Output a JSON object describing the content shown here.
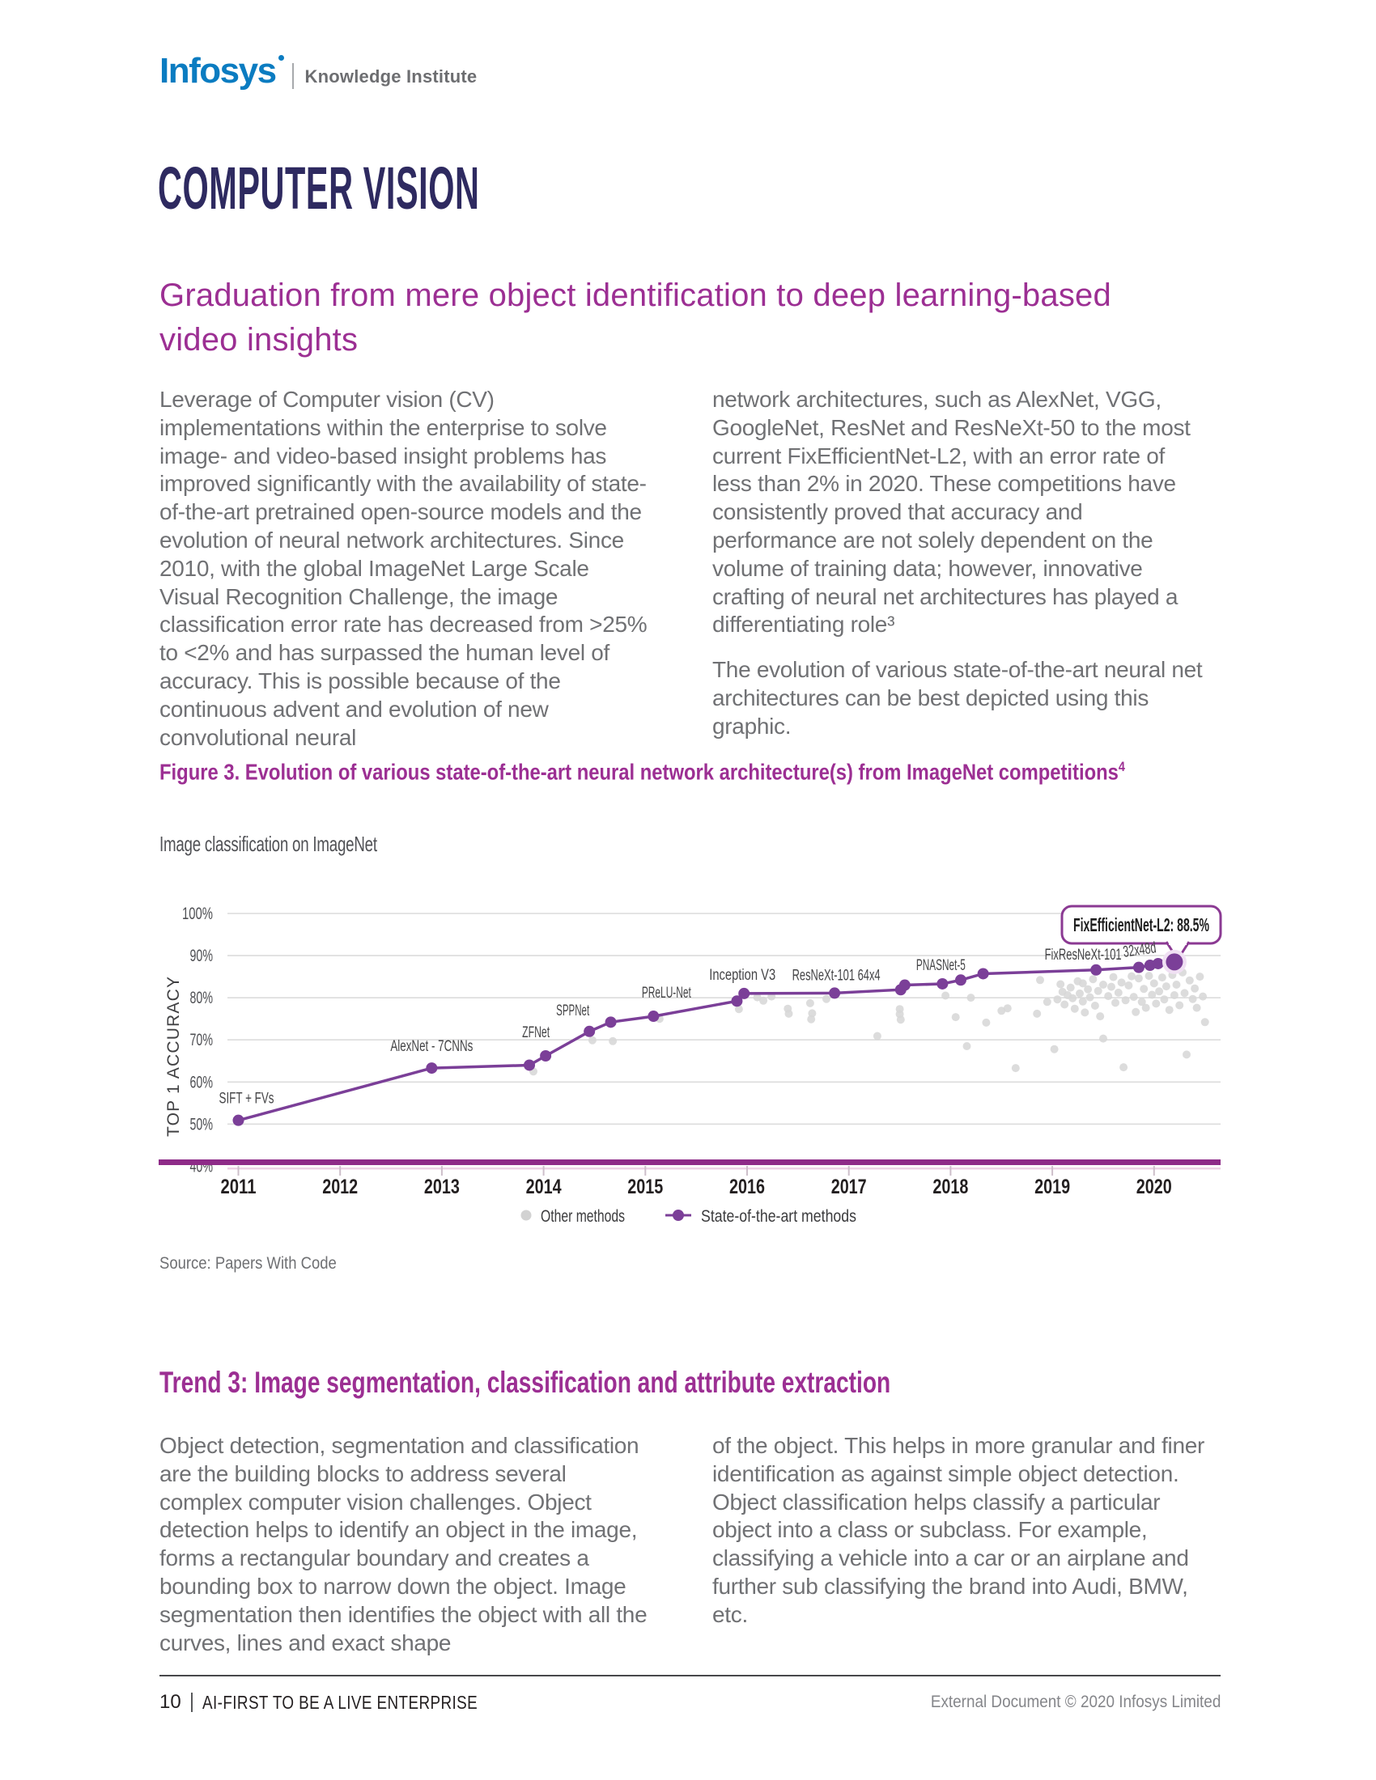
{
  "header": {
    "brand": "Infosys",
    "brand_sub": "Knowledge Institute",
    "brand_color": "#0b7cc1",
    "sub_color": "#6d6e71"
  },
  "article": {
    "title": "COMPUTER VISION",
    "title_color": "#2e2a60",
    "accent_color": "#9c2f93",
    "subtitle_line1": "Graduation from mere object identification to deep learning-based",
    "subtitle_line2": "video insights",
    "intro_col1": "Leverage of Computer vision (CV) implementations within the enterprise to solve image- and video-based insight problems has improved significantly with the availability of state-of-the-art pretrained open-source models and the evolution of neural network architectures. Since 2010, with the global ImageNet Large Scale Visual Recognition Challenge, the image classification error rate has decreased from >25% to <2% and has surpassed the human level of accuracy. This is possible because of the continuous advent and evolution of new convolutional neural",
    "intro_col2_p1": "network architectures, such as AlexNet, VGG, GoogleNet, ResNet and ResNeXt-50 to the most current FixEfficientNet-L2, with an error rate of less than 2% in 2020. These competitions have consistently proved that accuracy and performance are not solely dependent on the volume of training data; however, innovative crafting of neural net architectures has played a differentiating role³",
    "intro_col2_p2": "The evolution of various state-of-the-art neural net architectures can be best depicted using this graphic."
  },
  "figure": {
    "caption": "Figure 3. Evolution of various state-of-the-art neural network architecture(s) from ImageNet competitions",
    "caption_sup": "4",
    "source": "Source: Papers With Code"
  },
  "chart_data": {
    "type": "line+scatter",
    "title": "Image classification on ImageNet",
    "xlabel": "",
    "ylabel": "TOP 1 ACCURACY",
    "xlim": [
      2010.75,
      2020.65
    ],
    "ylim": [
      40,
      100
    ],
    "x_ticks": [
      2011,
      2012,
      2013,
      2014,
      2015,
      2016,
      2017,
      2018,
      2019,
      2020
    ],
    "y_tick_values": [
      100,
      90,
      80,
      70,
      60,
      50,
      40
    ],
    "y_tick_labels": [
      "100%",
      "90%",
      "80%",
      "70%",
      "60%",
      "50%",
      "40%"
    ],
    "grid": true,
    "legend_position": "bottom",
    "legend": [
      {
        "label": "Other methods",
        "color": "#d2d2d2"
      },
      {
        "label": "State-of-the-art methods",
        "color": "#7b3f98"
      }
    ],
    "annotation": "FixEfficientNet-L2: 88.5%",
    "axis_bar_color": "#8e2b88",
    "series": [
      {
        "name": "State-of-the-art methods",
        "type": "line",
        "color": "#7b3f98",
        "points": [
          {
            "x": 2011.0,
            "y": 50.9,
            "label": "SIFT + FVs"
          },
          {
            "x": 2012.9,
            "y": 63.3,
            "label": "AlexNet - 7CNNs"
          },
          {
            "x": 2013.86,
            "y": 64.0
          },
          {
            "x": 2014.02,
            "y": 66.2,
            "label": "ZFNet"
          },
          {
            "x": 2014.45,
            "y": 72.0,
            "label": "SPPNet"
          },
          {
            "x": 2014.66,
            "y": 74.2
          },
          {
            "x": 2015.08,
            "y": 75.6,
            "label": "PReLU-Net"
          },
          {
            "x": 2015.9,
            "y": 79.2
          },
          {
            "x": 2015.97,
            "y": 81.0,
            "label": "Inception V3"
          },
          {
            "x": 2016.86,
            "y": 81.1,
            "label": "ResNeXt-101 64x4"
          },
          {
            "x": 2017.51,
            "y": 81.9
          },
          {
            "x": 2017.55,
            "y": 83.0
          },
          {
            "x": 2017.92,
            "y": 83.3,
            "label": "PNASNet-5"
          },
          {
            "x": 2018.1,
            "y": 84.2
          },
          {
            "x": 2018.32,
            "y": 85.7
          },
          {
            "x": 2019.43,
            "y": 86.6,
            "label": "FixResNeXt-101"
          },
          {
            "x": 2019.85,
            "y": 87.2
          },
          {
            "x": 2019.96,
            "y": 87.7,
            "label": "32x48d"
          },
          {
            "x": 2020.04,
            "y": 88.1
          },
          {
            "x": 2020.2,
            "y": 88.5,
            "label": "FixEfficientNet-L2",
            "highlight": true
          }
        ]
      },
      {
        "name": "Other methods",
        "type": "scatter",
        "color": "#d7d7d7",
        "points": [
          [
            2013.9,
            62.5
          ],
          [
            2014.48,
            69.9
          ],
          [
            2014.68,
            69.7
          ],
          [
            2015.14,
            75.0
          ],
          [
            2015.92,
            77.3
          ],
          [
            2016.1,
            80.1
          ],
          [
            2016.16,
            79.3
          ],
          [
            2016.24,
            80.3
          ],
          [
            2016.4,
            77.4
          ],
          [
            2016.41,
            76.2
          ],
          [
            2016.62,
            78.7
          ],
          [
            2016.64,
            76.3
          ],
          [
            2016.63,
            74.9
          ],
          [
            2016.78,
            79.7
          ],
          [
            2017.28,
            70.9
          ],
          [
            2017.5,
            77.3
          ],
          [
            2017.5,
            76.1
          ],
          [
            2017.51,
            74.8
          ],
          [
            2017.95,
            80.5
          ],
          [
            2018.05,
            75.4
          ],
          [
            2018.16,
            68.5
          ],
          [
            2018.2,
            80.0
          ],
          [
            2018.35,
            74.1
          ],
          [
            2018.5,
            76.9
          ],
          [
            2018.56,
            77.5
          ],
          [
            2018.64,
            63.3
          ],
          [
            2018.85,
            76.2
          ],
          [
            2018.88,
            84.2
          ],
          [
            2018.95,
            79.0
          ],
          [
            2019.02,
            67.8
          ],
          [
            2019.05,
            79.6
          ],
          [
            2019.08,
            83.2
          ],
          [
            2019.1,
            81.4
          ],
          [
            2019.12,
            78.4
          ],
          [
            2019.15,
            80.6
          ],
          [
            2019.18,
            82.4
          ],
          [
            2019.2,
            79.9
          ],
          [
            2019.22,
            77.4
          ],
          [
            2019.25,
            83.9
          ],
          [
            2019.27,
            81.0
          ],
          [
            2019.3,
            83.4
          ],
          [
            2019.3,
            79.1
          ],
          [
            2019.32,
            76.5
          ],
          [
            2019.35,
            82.0
          ],
          [
            2019.37,
            80.1
          ],
          [
            2019.4,
            84.4
          ],
          [
            2019.42,
            78.1
          ],
          [
            2019.45,
            81.6
          ],
          [
            2019.47,
            75.6
          ],
          [
            2019.5,
            83.1
          ],
          [
            2019.5,
            70.3
          ],
          [
            2019.55,
            80.4
          ],
          [
            2019.58,
            82.6
          ],
          [
            2019.6,
            84.9
          ],
          [
            2019.62,
            78.8
          ],
          [
            2019.65,
            81.2
          ],
          [
            2019.68,
            83.6
          ],
          [
            2019.7,
            63.5
          ],
          [
            2019.72,
            79.4
          ],
          [
            2019.75,
            82.9
          ],
          [
            2019.78,
            85.1
          ],
          [
            2019.8,
            80.2
          ],
          [
            2019.82,
            76.6
          ],
          [
            2019.85,
            84.6
          ],
          [
            2019.88,
            79.0
          ],
          [
            2019.9,
            82.1
          ],
          [
            2019.92,
            77.6
          ],
          [
            2019.95,
            85.2
          ],
          [
            2019.98,
            80.7
          ],
          [
            2020.0,
            83.4
          ],
          [
            2020.02,
            78.6
          ],
          [
            2020.05,
            81.5
          ],
          [
            2020.08,
            84.8
          ],
          [
            2020.1,
            79.6
          ],
          [
            2020.12,
            82.7
          ],
          [
            2020.15,
            77.1
          ],
          [
            2020.18,
            85.4
          ],
          [
            2020.2,
            80.6
          ],
          [
            2020.22,
            83.1
          ],
          [
            2020.25,
            78.2
          ],
          [
            2020.28,
            86.0
          ],
          [
            2020.3,
            81.1
          ],
          [
            2020.32,
            66.5
          ],
          [
            2020.35,
            84.1
          ],
          [
            2020.38,
            79.7
          ],
          [
            2020.4,
            82.2
          ],
          [
            2020.42,
            77.6
          ],
          [
            2020.45,
            85.0
          ],
          [
            2020.48,
            80.3
          ],
          [
            2020.5,
            74.2
          ]
        ]
      }
    ]
  },
  "trend": {
    "heading": "Trend 3: Image segmentation, classification and attribute extraction",
    "col1": "Object detection, segmentation and classification are the building blocks to address several complex computer vision challenges. Object detection helps to identify an object in the image, forms a rectangular boundary and creates a bounding box to narrow down the object. Image segmentation then identifies the object with all the curves, lines and exact shape",
    "col2": "of the object. This helps in more granular and finer identification as against simple object detection. Object classification helps classify a particular object into a class or subclass. For example, classifying a vehicle into a car or an airplane and further sub classifying the brand into Audi, BMW, etc."
  },
  "footer": {
    "page_number": "10",
    "left_text": "AI-FIRST TO BE A LIVE ENTERPRISE",
    "right_text": "External Document © 2020 Infosys Limited"
  }
}
